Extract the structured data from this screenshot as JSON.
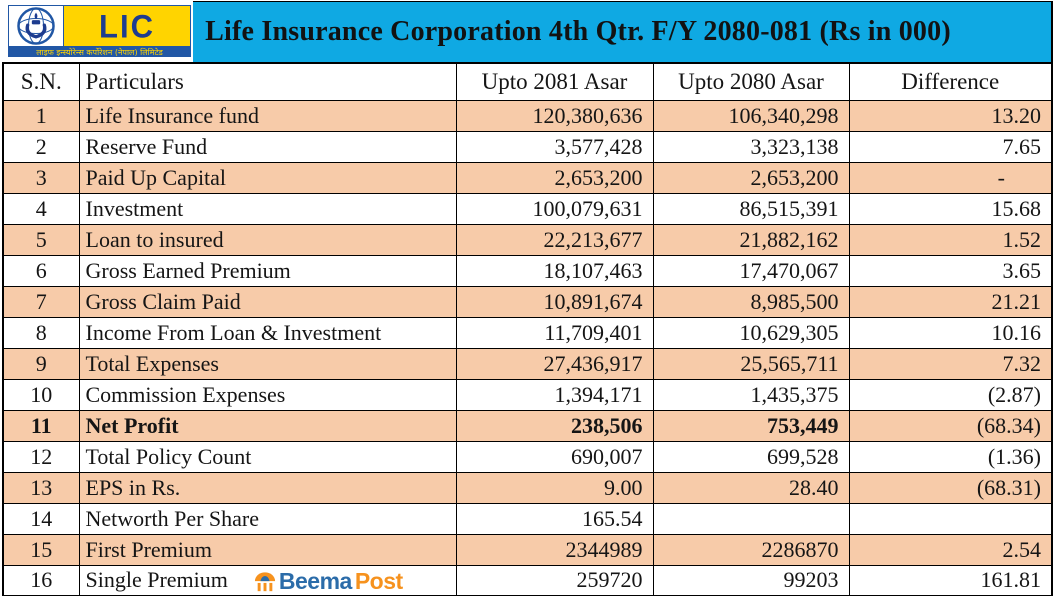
{
  "header": {
    "title": "Life Insurance Corporation 4th Qtr. F/Y 2080-081 (Rs in 000)",
    "logo": {
      "lic_text": "LIC",
      "nepali_text": "लाइफ इन्स्योरेन्स कर्पोरेशन (नेपाल) लिमिटेड"
    }
  },
  "brand": {
    "beema": "Beema",
    "post": "Post"
  },
  "colors": {
    "band_cyan": "#0fa9e3",
    "row_peach": "#f7cba9",
    "lic_yellow": "#ffd400",
    "lic_blue": "#1d3c8f",
    "strip_blue": "#2157a5",
    "beema_blue": "#2b6ca9",
    "post_orange": "#f6921e"
  },
  "table": {
    "columns": [
      "S.N.",
      "Particulars",
      "Upto 2081 Asar",
      "Upto 2080 Asar",
      "Difference"
    ],
    "rows": [
      {
        "sn": "1",
        "particulars": "Life Insurance fund",
        "v2081": "120,380,636",
        "v2080": "106,340,298",
        "diff": "13.20",
        "shaded": true,
        "bold": false,
        "brand": false
      },
      {
        "sn": "2",
        "particulars": "Reserve Fund",
        "v2081": "3,577,428",
        "v2080": "3,323,138",
        "diff": "7.65",
        "shaded": false,
        "bold": false,
        "brand": false
      },
      {
        "sn": "3",
        "particulars": "Paid Up Capital",
        "v2081": "2,653,200",
        "v2080": "2,653,200",
        "diff": "-",
        "shaded": true,
        "bold": false,
        "brand": false
      },
      {
        "sn": "4",
        "particulars": "Investment",
        "v2081": "100,079,631",
        "v2080": "86,515,391",
        "diff": "15.68",
        "shaded": false,
        "bold": false,
        "brand": false
      },
      {
        "sn": "5",
        "particulars": "Loan to insured",
        "v2081": "22,213,677",
        "v2080": "21,882,162",
        "diff": "1.52",
        "shaded": true,
        "bold": false,
        "brand": false
      },
      {
        "sn": "6",
        "particulars": "Gross Earned Premium",
        "v2081": "18,107,463",
        "v2080": "17,470,067",
        "diff": "3.65",
        "shaded": false,
        "bold": false,
        "brand": false
      },
      {
        "sn": "7",
        "particulars": "Gross Claim Paid",
        "v2081": "10,891,674",
        "v2080": "8,985,500",
        "diff": "21.21",
        "shaded": true,
        "bold": false,
        "brand": false
      },
      {
        "sn": "8",
        "particulars": "Income From Loan & Investment",
        "v2081": "11,709,401",
        "v2080": "10,629,305",
        "diff": "10.16",
        "shaded": false,
        "bold": false,
        "brand": false
      },
      {
        "sn": "9",
        "particulars": "Total Expenses",
        "v2081": "27,436,917",
        "v2080": "25,565,711",
        "diff": "7.32",
        "shaded": true,
        "bold": false,
        "brand": false
      },
      {
        "sn": "10",
        "particulars": "Commission Expenses",
        "v2081": "1,394,171",
        "v2080": "1,435,375",
        "diff": "(2.87)",
        "shaded": false,
        "bold": false,
        "brand": false
      },
      {
        "sn": "11",
        "particulars": "Net Profit",
        "v2081": "238,506",
        "v2080": "753,449",
        "diff": "(68.34)",
        "shaded": true,
        "bold": true,
        "brand": false
      },
      {
        "sn": "12",
        "particulars": "Total Policy Count",
        "v2081": "690,007",
        "v2080": "699,528",
        "diff": "(1.36)",
        "shaded": false,
        "bold": false,
        "brand": false
      },
      {
        "sn": "13",
        "particulars": "EPS in Rs.",
        "v2081": "9.00",
        "v2080": "28.40",
        "diff": "(68.31)",
        "shaded": true,
        "bold": false,
        "brand": false
      },
      {
        "sn": "14",
        "particulars": "Networth Per Share",
        "v2081": "165.54",
        "v2080": "",
        "diff": "",
        "shaded": false,
        "bold": false,
        "brand": false
      },
      {
        "sn": "15",
        "particulars": "First Premium",
        "v2081": "2344989",
        "v2080": "2286870",
        "diff": "2.54",
        "shaded": true,
        "bold": false,
        "brand": false
      },
      {
        "sn": "16",
        "particulars": "Single Premium",
        "v2081": "259720",
        "v2080": "99203",
        "diff": "161.81",
        "shaded": false,
        "bold": false,
        "brand": true
      }
    ]
  }
}
